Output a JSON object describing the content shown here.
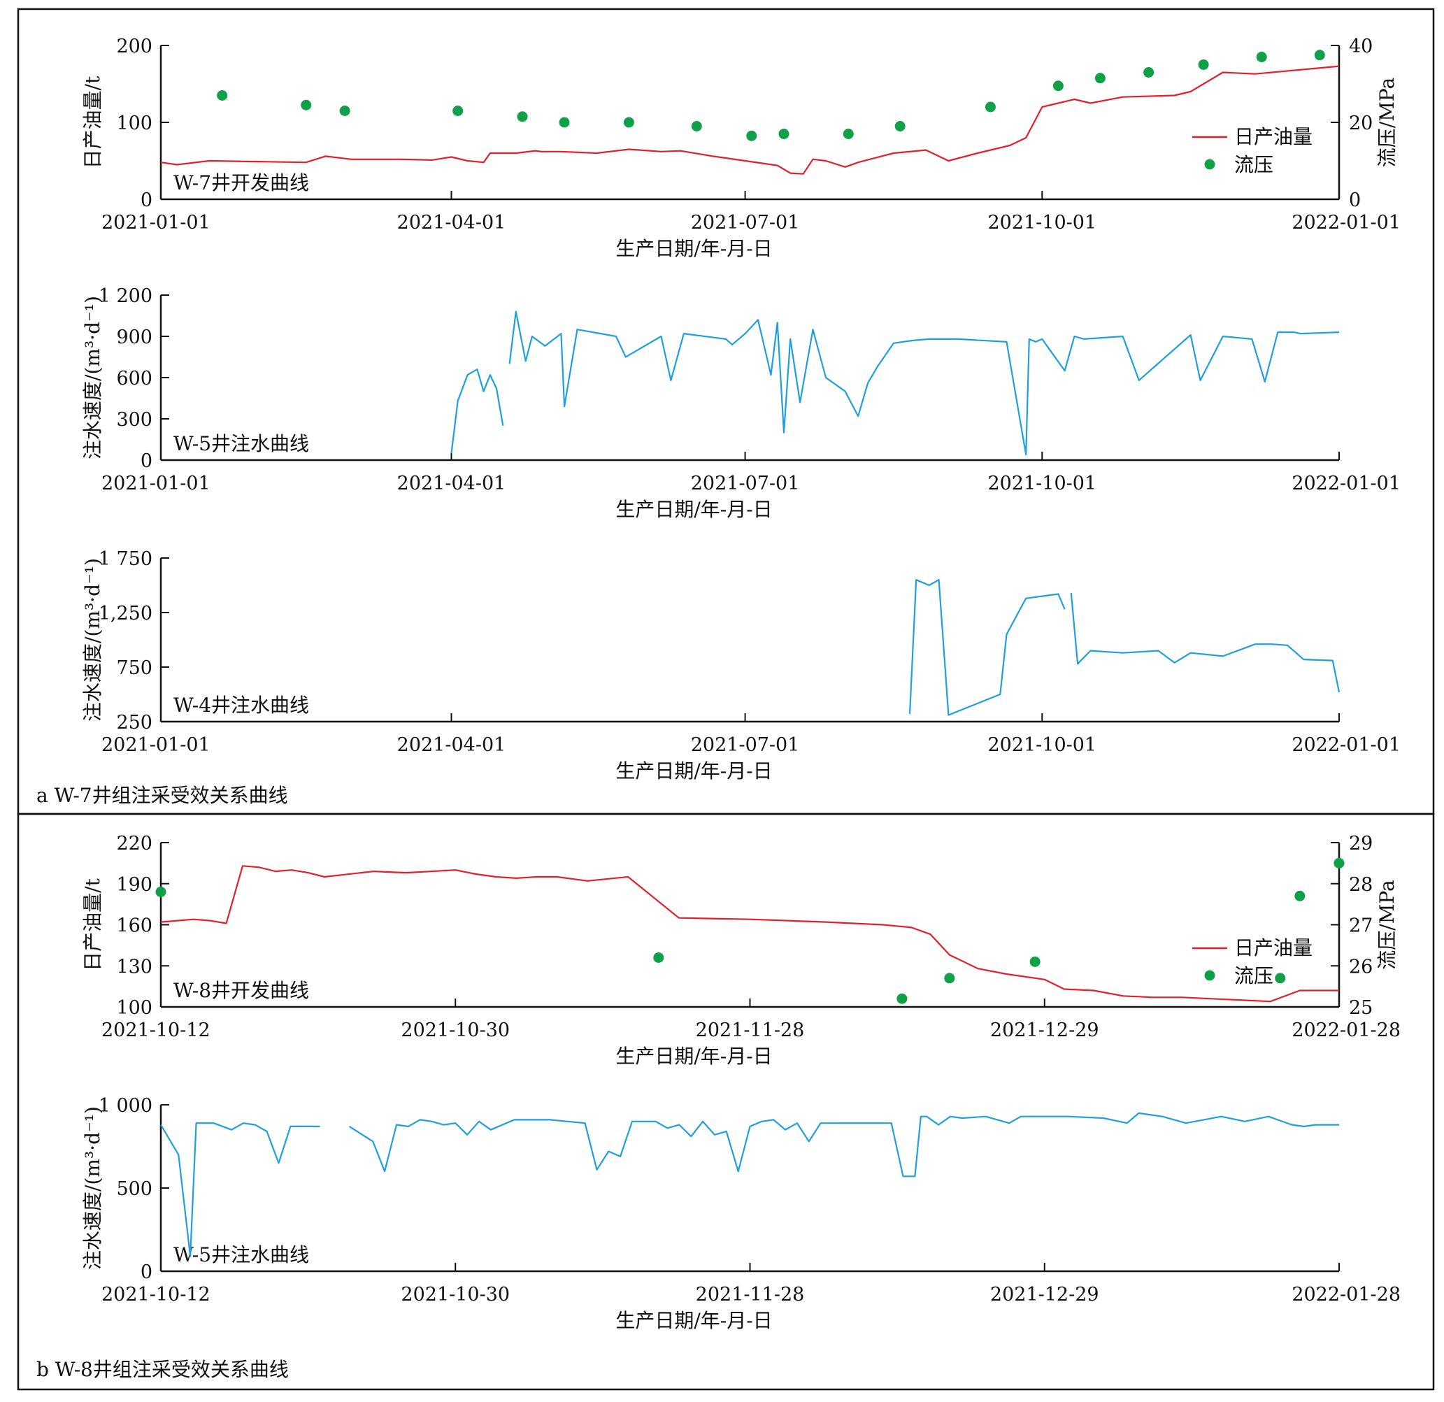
{
  "colors": {
    "oil": "#e0202a",
    "pressure": "#10a048",
    "water": "#1fa0dc",
    "axis": "#111111"
  },
  "section_a": {
    "caption": "a W-7井组注采受效关系曲线"
  },
  "section_b": {
    "caption": "b W-8井组注采受效关系曲线"
  },
  "legend": {
    "oil": "日产油量",
    "pressure": "流压"
  },
  "chart_data": [
    {
      "id": "a1",
      "type": "line",
      "title": "W-7井开发曲线",
      "xlabel": "生产日期/年-月-日",
      "ylabel": "日产油量/t",
      "y2label": "流压/MPa",
      "x_ticks": [
        "2021-01-01",
        "2021-04-01",
        "2021-07-01",
        "2021-10-01",
        "2022-01-01"
      ],
      "x_range": [
        "2021-01-01",
        "2022-01-01"
      ],
      "ylim": [
        0,
        200
      ],
      "yticks": [
        0,
        100,
        200
      ],
      "ytick_labels": [
        "0",
        "100",
        "200"
      ],
      "y2lim": [
        0,
        40
      ],
      "y2ticks": [
        0,
        20,
        40
      ],
      "y2tick_labels": [
        "0",
        "20",
        "40"
      ],
      "legend_position": "right",
      "series": [
        {
          "name": "日产油量",
          "type": "line",
          "color": "#e0202a",
          "axis": "left",
          "x": [
            "2021-01-01",
            "2021-01-06",
            "2021-01-16",
            "2021-01-31",
            "2021-02-15",
            "2021-02-21",
            "2021-03-01",
            "2021-03-16",
            "2021-03-26",
            "2021-04-01",
            "2021-04-06",
            "2021-04-11",
            "2021-04-13",
            "2021-04-21",
            "2021-04-27",
            "2021-04-29",
            "2021-05-05",
            "2021-05-16",
            "2021-05-26",
            "2021-06-05",
            "2021-06-11",
            "2021-06-21",
            "2021-07-01",
            "2021-07-11",
            "2021-07-15",
            "2021-07-19",
            "2021-07-22",
            "2021-07-26",
            "2021-08-01",
            "2021-08-05",
            "2021-08-16",
            "2021-08-26",
            "2021-09-02",
            "2021-09-11",
            "2021-09-21",
            "2021-09-26",
            "2021-10-01",
            "2021-10-06",
            "2021-10-11",
            "2021-10-16",
            "2021-10-26",
            "2021-11-11",
            "2021-11-16",
            "2021-11-26",
            "2021-12-06",
            "2022-01-01"
          ],
          "values": [
            48,
            45,
            50,
            49,
            48,
            56,
            52,
            52,
            51,
            55,
            50,
            48,
            60,
            60,
            63,
            62,
            62,
            60,
            65,
            62,
            63,
            56,
            50,
            44,
            34,
            33,
            52,
            50,
            42,
            48,
            60,
            64,
            50,
            60,
            70,
            80,
            120,
            125,
            130,
            125,
            133,
            135,
            140,
            165,
            163,
            173
          ]
        },
        {
          "name": "流压",
          "type": "scatter",
          "color": "#10a048",
          "axis": "right",
          "x": [
            "2021-01-20",
            "2021-02-15",
            "2021-02-27",
            "2021-04-03",
            "2021-04-23",
            "2021-05-06",
            "2021-05-26",
            "2021-06-16",
            "2021-07-03",
            "2021-07-13",
            "2021-08-02",
            "2021-08-18",
            "2021-09-15",
            "2021-10-06",
            "2021-10-19",
            "2021-11-03",
            "2021-11-20",
            "2021-12-08",
            "2021-12-26"
          ],
          "values": [
            27,
            24.5,
            23,
            23,
            21.5,
            20,
            20,
            19,
            16.5,
            17,
            17,
            19,
            24,
            29.5,
            31.5,
            33,
            35,
            37,
            37.5
          ]
        }
      ]
    },
    {
      "id": "a2",
      "type": "line",
      "title": "W-5井注水曲线",
      "xlabel": "生产日期/年-月-日",
      "ylabel": "注水速度/(m³·d⁻¹)",
      "x_ticks": [
        "2021-01-01",
        "2021-04-01",
        "2021-07-01",
        "2021-10-01",
        "2022-01-01"
      ],
      "x_range": [
        "2021-01-01",
        "2022-01-01"
      ],
      "ylim": [
        0,
        1200
      ],
      "yticks": [
        0,
        300,
        600,
        900,
        1200
      ],
      "ytick_labels": [
        "0",
        "300",
        "600",
        "900",
        "1 200"
      ],
      "series": [
        {
          "name": "W-5",
          "type": "line",
          "color": "#1fa0dc",
          "segments": [
            {
              "x": [
                "2021-04-01",
                "2021-04-03",
                "2021-04-06",
                "2021-04-09",
                "2021-04-11",
                "2021-04-13",
                "2021-04-15",
                "2021-04-17"
              ],
              "values": [
                50,
                430,
                620,
                660,
                500,
                620,
                520,
                250
              ]
            },
            {
              "x": [
                "2021-04-19",
                "2021-04-21",
                "2021-04-24",
                "2021-04-26",
                "2021-04-30",
                "2021-05-05",
                "2021-05-06",
                "2021-05-10",
                "2021-05-22",
                "2021-05-25",
                "2021-06-05",
                "2021-06-08",
                "2021-06-12",
                "2021-06-25",
                "2021-06-27",
                "2021-07-01",
                "2021-07-05",
                "2021-07-09",
                "2021-07-11",
                "2021-07-13",
                "2021-07-15",
                "2021-07-18",
                "2021-07-22",
                "2021-07-26",
                "2021-08-01",
                "2021-08-05",
                "2021-08-08",
                "2021-08-11",
                "2021-08-16",
                "2021-08-22",
                "2021-08-27",
                "2021-09-05",
                "2021-09-20",
                "2021-09-26",
                "2021-09-27",
                "2021-09-29",
                "2021-10-01",
                "2021-10-08",
                "2021-10-11",
                "2021-10-14",
                "2021-10-26",
                "2021-10-31",
                "2021-11-16",
                "2021-11-19",
                "2021-11-26",
                "2021-12-05",
                "2021-12-09",
                "2021-12-13",
                "2021-12-18",
                "2021-12-20",
                "2022-01-01"
              ],
              "values": [
                700,
                1080,
                720,
                900,
                830,
                920,
                390,
                950,
                900,
                750,
                900,
                580,
                920,
                880,
                840,
                920,
                1020,
                620,
                1000,
                200,
                880,
                420,
                950,
                600,
                500,
                320,
                560,
                680,
                850,
                870,
                880,
                880,
                860,
                40,
                880,
                860,
                880,
                650,
                900,
                880,
                900,
                580,
                910,
                580,
                900,
                880,
                570,
                930,
                930,
                920,
                930
              ]
            }
          ]
        }
      ]
    },
    {
      "id": "a3",
      "type": "line",
      "title": "W-4井注水曲线",
      "xlabel": "生产日期/年-月-日",
      "ylabel": "注水速度/(m³·d⁻¹)",
      "x_ticks": [
        "2021-01-01",
        "2021-04-01",
        "2021-07-01",
        "2021-10-01",
        "2022-01-01"
      ],
      "x_range": [
        "2021-01-01",
        "2022-01-01"
      ],
      "ylim": [
        250,
        1750
      ],
      "yticks": [
        250,
        750,
        1250,
        1750
      ],
      "ytick_labels": [
        "250",
        "750",
        "1,250",
        "1 750"
      ],
      "series": [
        {
          "name": "W-4",
          "type": "line",
          "color": "#1fa0dc",
          "segments": [
            {
              "x": [
                "2021-08-21",
                "2021-08-23",
                "2021-08-27",
                "2021-08-30",
                "2021-09-02",
                "2021-09-18",
                "2021-09-20",
                "2021-09-26",
                "2021-10-01",
                "2021-10-06",
                "2021-10-08"
              ],
              "values": [
                320,
                1550,
                1500,
                1550,
                310,
                500,
                1050,
                1380,
                1400,
                1420,
                1280
              ]
            },
            {
              "x": [
                "2021-10-10",
                "2021-10-12",
                "2021-10-16",
                "2021-10-26",
                "2021-11-06",
                "2021-11-11",
                "2021-11-16",
                "2021-11-26",
                "2021-12-06",
                "2021-12-11",
                "2021-12-16",
                "2021-12-21",
                "2021-12-30",
                "2022-01-01"
              ],
              "values": [
                1430,
                780,
                900,
                880,
                900,
                790,
                880,
                850,
                960,
                960,
                950,
                820,
                810,
                520
              ]
            }
          ]
        }
      ]
    },
    {
      "id": "b1",
      "type": "line",
      "title": "W-8井开发曲线",
      "xlabel": "生产日期/年-月-日",
      "ylabel": "日产油量/t",
      "y2label": "流压/MPa",
      "x_ticks": [
        "2021-10-12",
        "2021-10-30",
        "2021-11-28",
        "2021-12-29",
        "2022-01-28"
      ],
      "ylim": [
        100,
        220
      ],
      "yticks": [
        100,
        130,
        160,
        190,
        220
      ],
      "ytick_labels": [
        "100",
        "130",
        "160",
        "190",
        "220"
      ],
      "y2lim": [
        25,
        29
      ],
      "y2ticks": [
        25,
        26,
        27,
        28,
        29
      ],
      "y2tick_labels": [
        "25",
        "26",
        "27",
        "28",
        "29"
      ],
      "legend_position": "right",
      "series": [
        {
          "name": "日产油量",
          "type": "line",
          "color": "#e0202a",
          "axis": "left",
          "x": [
            "2021-10-12",
            "2021-10-14",
            "2021-10-15",
            "2021-10-16",
            "2021-10-17",
            "2021-10-18",
            "2021-10-19",
            "2021-10-20",
            "2021-10-21",
            "2021-10-22",
            "2021-10-25",
            "2021-10-27",
            "2021-10-30",
            "2021-11-01",
            "2021-11-03",
            "2021-11-05",
            "2021-11-07",
            "2021-11-09",
            "2021-11-12",
            "2021-11-16",
            "2021-11-21",
            "2021-11-28",
            "2021-12-06",
            "2021-12-12",
            "2021-12-15",
            "2021-12-17",
            "2021-12-19",
            "2021-12-22",
            "2021-12-25",
            "2021-12-29",
            "2021-12-31",
            "2022-01-03",
            "2022-01-06",
            "2022-01-09",
            "2022-01-12",
            "2022-01-15",
            "2022-01-18",
            "2022-01-21",
            "2022-01-24",
            "2022-01-28"
          ],
          "values": [
            162,
            164,
            163,
            161,
            203,
            202,
            199,
            200,
            198,
            195,
            199,
            198,
            200,
            197,
            195,
            194,
            195,
            195,
            192,
            195,
            165,
            164,
            162,
            160,
            158,
            153,
            138,
            128,
            124,
            120,
            113,
            112,
            108,
            107,
            107,
            106,
            105,
            104,
            112,
            112
          ]
        },
        {
          "name": "流压",
          "type": "scatter",
          "color": "#10a048",
          "axis": "right",
          "x": [
            "2021-10-12",
            "2021-11-19",
            "2021-12-14",
            "2021-12-19",
            "2021-12-28",
            "2022-01-22",
            "2022-01-24",
            "2022-01-28"
          ],
          "values": [
            27.8,
            26.2,
            25.2,
            25.7,
            26.1,
            25.7,
            27.7,
            28.5
          ]
        }
      ]
    },
    {
      "id": "b2",
      "type": "line",
      "title": "W-5井注水曲线",
      "xlabel": "生产日期/年-月-日",
      "ylabel": "注水速度/(m³·d⁻¹)",
      "x_ticks": [
        "2021-10-12",
        "2021-10-30",
        "2021-11-28",
        "2021-12-29",
        "2022-01-28"
      ],
      "ylim": [
        0,
        1000
      ],
      "yticks": [
        0,
        500,
        1000
      ],
      "ytick_labels": [
        "0",
        "500",
        "1 000"
      ],
      "series": [
        {
          "name": "W-5",
          "type": "line",
          "color": "#1fa0dc",
          "segments": [
            {
              "u": [
                0,
                0.015,
                0.025,
                0.03,
                0.035,
                0.045,
                0.06,
                0.07,
                0.08,
                0.09,
                0.1,
                0.11,
                0.12,
                0.135
              ],
              "values": [
                880,
                700,
                90,
                890,
                890,
                890,
                850,
                890,
                880,
                840,
                650,
                870,
                870,
                870
              ]
            },
            {
              "u": [
                0.16,
                0.18,
                0.19,
                0.2,
                0.21,
                0.22,
                0.23,
                0.24,
                0.25,
                0.26,
                0.27,
                0.28,
                0.3,
                0.33,
                0.36,
                0.37,
                0.38,
                0.39,
                0.4,
                0.42,
                0.43,
                0.44,
                0.45,
                0.46,
                0.47,
                0.48,
                0.49,
                0.5,
                0.51,
                0.52,
                0.53,
                0.54,
                0.55,
                0.56,
                0.58,
                0.6,
                0.62,
                0.63,
                0.64,
                0.645,
                0.65,
                0.66,
                0.67,
                0.68,
                0.7,
                0.72,
                0.73,
                0.75,
                0.77,
                0.8,
                0.82,
                0.83,
                0.85,
                0.87,
                0.9,
                0.92,
                0.94,
                0.96,
                0.97,
                0.98,
                1.0
              ],
              "values": [
                870,
                780,
                600,
                880,
                870,
                910,
                900,
                880,
                890,
                820,
                900,
                850,
                910,
                910,
                890,
                610,
                720,
                690,
                900,
                900,
                860,
                880,
                810,
                900,
                820,
                840,
                600,
                870,
                900,
                910,
                850,
                890,
                780,
                890,
                890,
                890,
                890,
                570,
                570,
                930,
                930,
                880,
                930,
                920,
                930,
                890,
                930,
                930,
                930,
                920,
                890,
                950,
                930,
                890,
                930,
                900,
                930,
                880,
                870,
                880,
                880
              ]
            }
          ]
        }
      ]
    }
  ]
}
